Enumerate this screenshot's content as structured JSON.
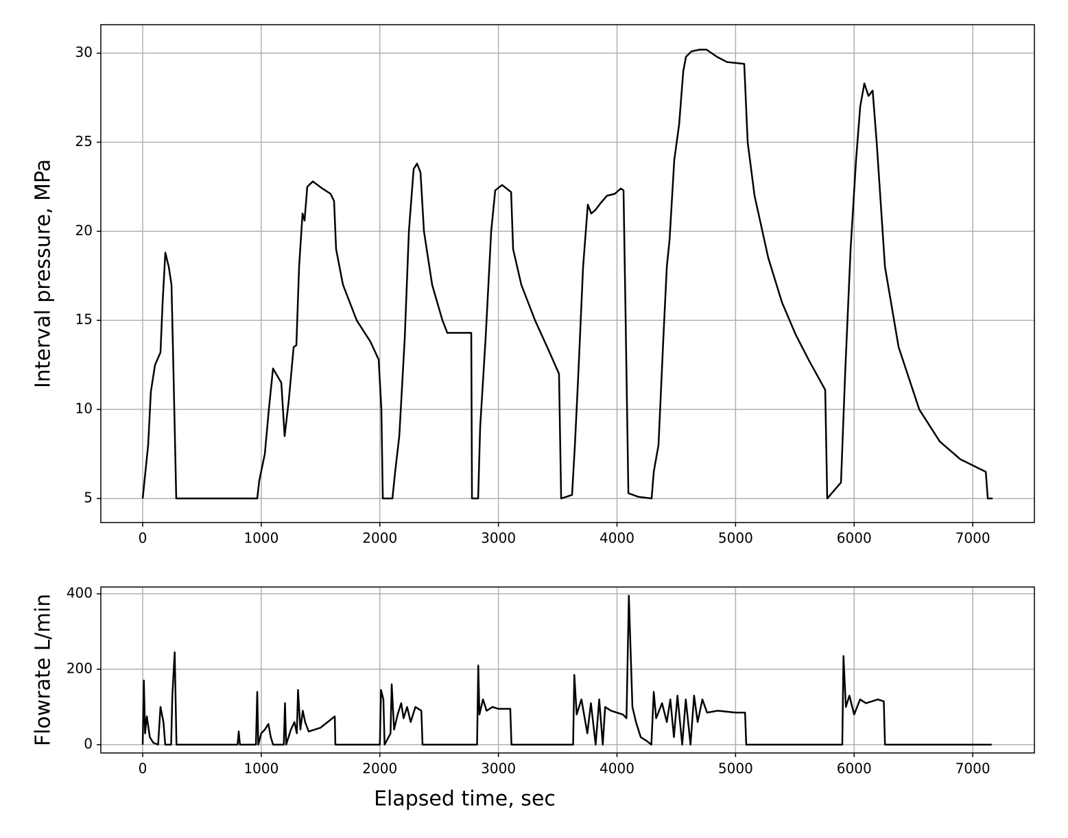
{
  "chart_data": [
    {
      "type": "line",
      "ylabel": "Interval pressure, MPa",
      "grid": true,
      "xlim": [
        -353,
        7520
      ],
      "ylim": [
        3.65,
        31.6
      ],
      "xticks": [
        0,
        1000,
        2000,
        3000,
        4000,
        5000,
        6000,
        7000
      ],
      "yticks": [
        5,
        10,
        15,
        20,
        25,
        30
      ],
      "x": [
        0,
        23,
        46,
        69,
        104,
        150,
        168,
        191,
        220,
        243,
        260,
        283,
        966,
        983,
        1030,
        1064,
        1099,
        1169,
        1197,
        1232,
        1273,
        1296,
        1319,
        1348,
        1365,
        1388,
        1435,
        1516,
        1585,
        1614,
        1631,
        1689,
        1805,
        1921,
        1990,
        2013,
        2025,
        2106,
        2129,
        2164,
        2210,
        2245,
        2285,
        2314,
        2343,
        2372,
        2441,
        2528,
        2569,
        2771,
        2777,
        2829,
        2846,
        2892,
        2939,
        2973,
        3031,
        3107,
        3124,
        3193,
        3309,
        3425,
        3511,
        3529,
        3621,
        3645,
        3674,
        3714,
        3754,
        3783,
        3818,
        3864,
        3916,
        3980,
        4032,
        4055,
        4073,
        4096,
        4177,
        4292,
        4310,
        4350,
        4391,
        4420,
        4443,
        4483,
        4524,
        4559,
        4582,
        4628,
        4697,
        4755,
        4842,
        4929,
        5073,
        5102,
        5160,
        5276,
        5392,
        5507,
        5623,
        5756,
        5773,
        5889,
        5924,
        5970,
        6016,
        6051,
        6086,
        6121,
        6156,
        6190,
        6260,
        6375,
        6549,
        6722,
        6896,
        7110,
        7127,
        7168
      ],
      "series": [
        {
          "color": "#000000",
          "values": [
            5,
            6.5,
            8,
            11,
            12.5,
            13.2,
            16,
            18.8,
            18,
            17,
            12,
            5,
            5,
            6,
            7.5,
            10,
            12.3,
            11.5,
            8.5,
            10.5,
            13.5,
            13.6,
            18,
            21,
            20.6,
            22.5,
            22.8,
            22.4,
            22.1,
            21.7,
            19,
            17,
            15,
            13.8,
            12.8,
            10,
            5,
            5,
            6.5,
            8.5,
            14,
            20,
            23.5,
            23.8,
            23.3,
            20,
            17,
            15,
            14.3,
            14.3,
            5,
            5,
            9,
            14,
            20,
            22.3,
            22.6,
            22.2,
            19,
            17,
            15,
            13.3,
            12,
            5,
            5.2,
            8,
            12,
            18,
            21.5,
            21,
            21.2,
            21.6,
            22,
            22.1,
            22.4,
            22.3,
            15,
            5.3,
            5.1,
            5,
            6.5,
            8,
            14,
            18,
            19.5,
            24,
            26,
            29,
            29.8,
            30.1,
            30.2,
            30.2,
            29.8,
            29.5,
            29.4,
            25,
            22,
            18.5,
            16,
            14.2,
            12.7,
            11.1,
            5,
            5.9,
            12,
            19,
            24,
            27,
            28.3,
            27.6,
            27.9,
            25,
            18,
            13.5,
            10,
            8.2,
            7.2,
            6.5,
            5,
            5
          ]
        }
      ]
    },
    {
      "type": "line",
      "ylabel": "Flowrate L/min",
      "xlabel": "Elapsed time, sec",
      "grid": true,
      "xlim": [
        -353,
        7520
      ],
      "ylim": [
        -22,
        418
      ],
      "xticks": [
        0,
        1000,
        2000,
        3000,
        4000,
        5000,
        6000,
        7000
      ],
      "yticks": [
        0,
        200,
        400
      ],
      "x": [
        0,
        10,
        20,
        35,
        60,
        90,
        130,
        150,
        175,
        190,
        240,
        250,
        270,
        285,
        800,
        810,
        820,
        955,
        966,
        975,
        1000,
        1030,
        1060,
        1080,
        1100,
        1190,
        1200,
        1210,
        1250,
        1280,
        1300,
        1310,
        1330,
        1350,
        1370,
        1400,
        1500,
        1600,
        1620,
        1625,
        2000,
        2010,
        2030,
        2040,
        2090,
        2100,
        2120,
        2150,
        2180,
        2200,
        2230,
        2260,
        2300,
        2350,
        2360,
        2820,
        2830,
        2840,
        2870,
        2900,
        2950,
        3000,
        3100,
        3110,
        3630,
        3640,
        3660,
        3700,
        3750,
        3780,
        3820,
        3850,
        3880,
        3900,
        3950,
        4050,
        4080,
        4100,
        4130,
        4160,
        4200,
        4250,
        4290,
        4310,
        4330,
        4380,
        4420,
        4450,
        4480,
        4510,
        4550,
        4580,
        4620,
        4650,
        4680,
        4720,
        4760,
        4850,
        5000,
        5080,
        5090,
        5900,
        5910,
        5930,
        5960,
        6000,
        6050,
        6100,
        6200,
        6250,
        6260,
        7160
      ],
      "series": [
        {
          "color": "#000000",
          "values": [
            0,
            170,
            30,
            75,
            20,
            5,
            0,
            100,
            60,
            0,
            0,
            130,
            245,
            0,
            0,
            35,
            0,
            0,
            140,
            0,
            30,
            40,
            55,
            20,
            0,
            0,
            110,
            0,
            40,
            60,
            30,
            145,
            40,
            90,
            60,
            35,
            45,
            70,
            75,
            0,
            0,
            145,
            120,
            0,
            30,
            160,
            40,
            80,
            110,
            70,
            100,
            60,
            100,
            90,
            0,
            0,
            210,
            80,
            120,
            90,
            100,
            95,
            95,
            0,
            0,
            185,
            80,
            120,
            30,
            110,
            0,
            120,
            0,
            100,
            90,
            80,
            70,
            395,
            100,
            60,
            20,
            10,
            0,
            140,
            70,
            110,
            60,
            120,
            20,
            130,
            0,
            120,
            0,
            130,
            60,
            120,
            85,
            90,
            85,
            85,
            0,
            0,
            235,
            100,
            130,
            80,
            120,
            110,
            120,
            115,
            0,
            0
          ]
        }
      ]
    }
  ]
}
